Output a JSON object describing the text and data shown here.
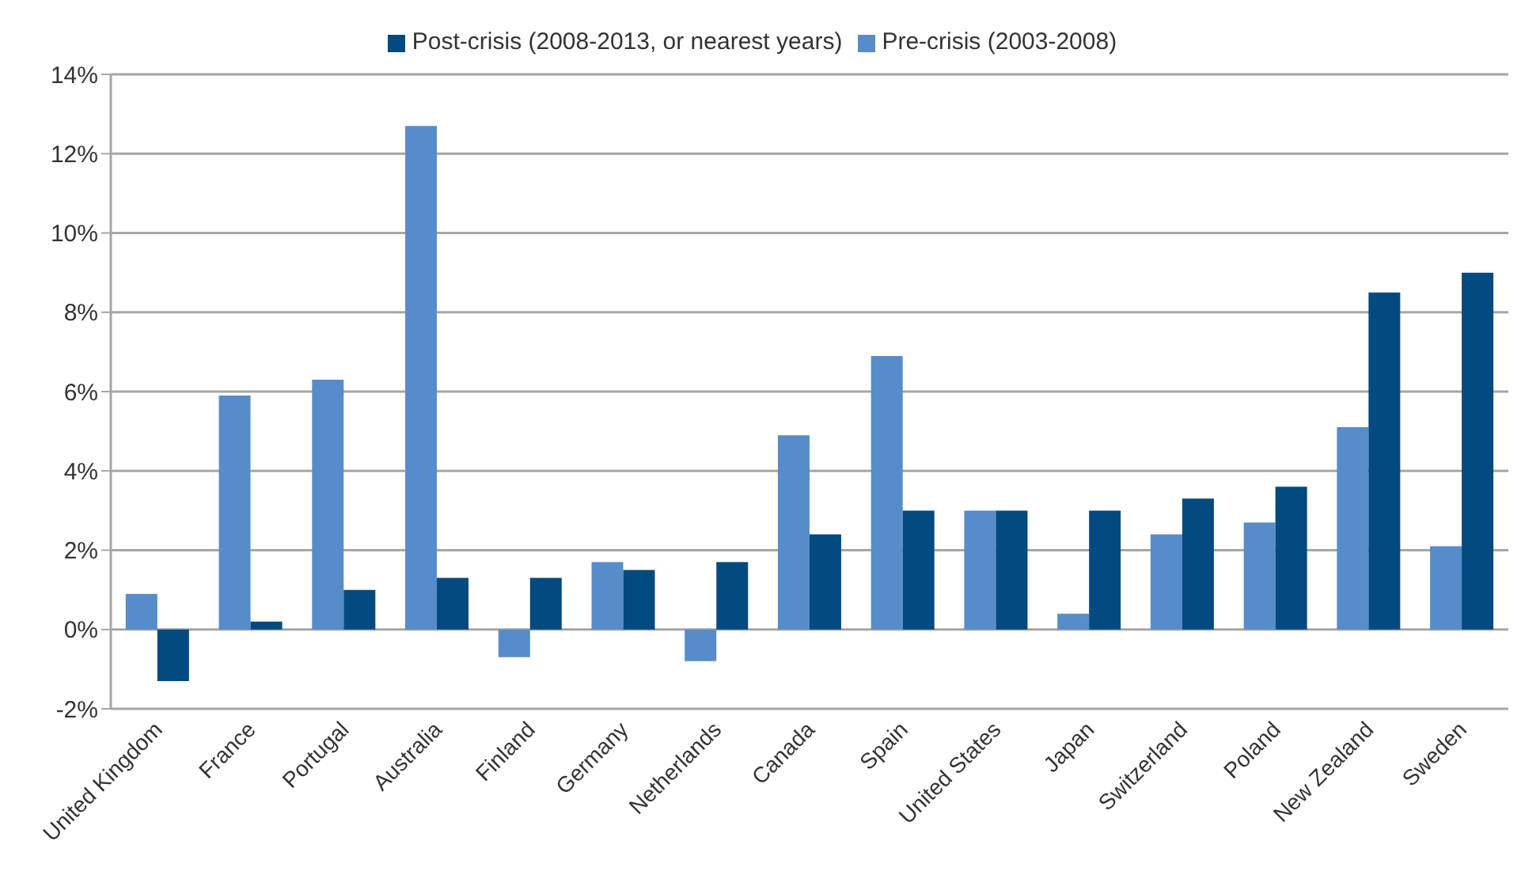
{
  "chart_data": {
    "type": "bar",
    "categories": [
      "United Kingdom",
      "France",
      "Portugal",
      "Australia",
      "Finland",
      "Germany",
      "Netherlands",
      "Canada",
      "Spain",
      "United States",
      "Japan",
      "Switzerland",
      "Poland",
      "New Zealand",
      "Sweden"
    ],
    "series": [
      {
        "name": "Pre-crisis (2003-2008)",
        "color": "#578ccb",
        "values": [
          0.9,
          5.9,
          6.3,
          12.7,
          -0.7,
          1.7,
          -0.8,
          4.9,
          6.9,
          3.0,
          0.4,
          2.4,
          2.7,
          5.1,
          2.1
        ]
      },
      {
        "name": "Post-crisis (2008-2013, or nearest years)",
        "color": "#034a80",
        "values": [
          -1.3,
          0.2,
          1.0,
          1.3,
          1.3,
          1.5,
          1.7,
          2.4,
          3.0,
          3.0,
          3.0,
          3.3,
          3.6,
          8.5,
          9.0
        ]
      }
    ],
    "ylim": [
      -2,
      14
    ],
    "yticks": [
      {
        "value": -2,
        "label": "-2%"
      },
      {
        "value": 0,
        "label": "0%"
      },
      {
        "value": 2,
        "label": "2%"
      },
      {
        "value": 4,
        "label": "4%"
      },
      {
        "value": 6,
        "label": "6%"
      },
      {
        "value": 8,
        "label": "8%"
      },
      {
        "value": 10,
        "label": "10%"
      },
      {
        "value": 12,
        "label": "12%"
      },
      {
        "value": 14,
        "label": "14%"
      }
    ],
    "grid": "y",
    "legend": "top"
  }
}
